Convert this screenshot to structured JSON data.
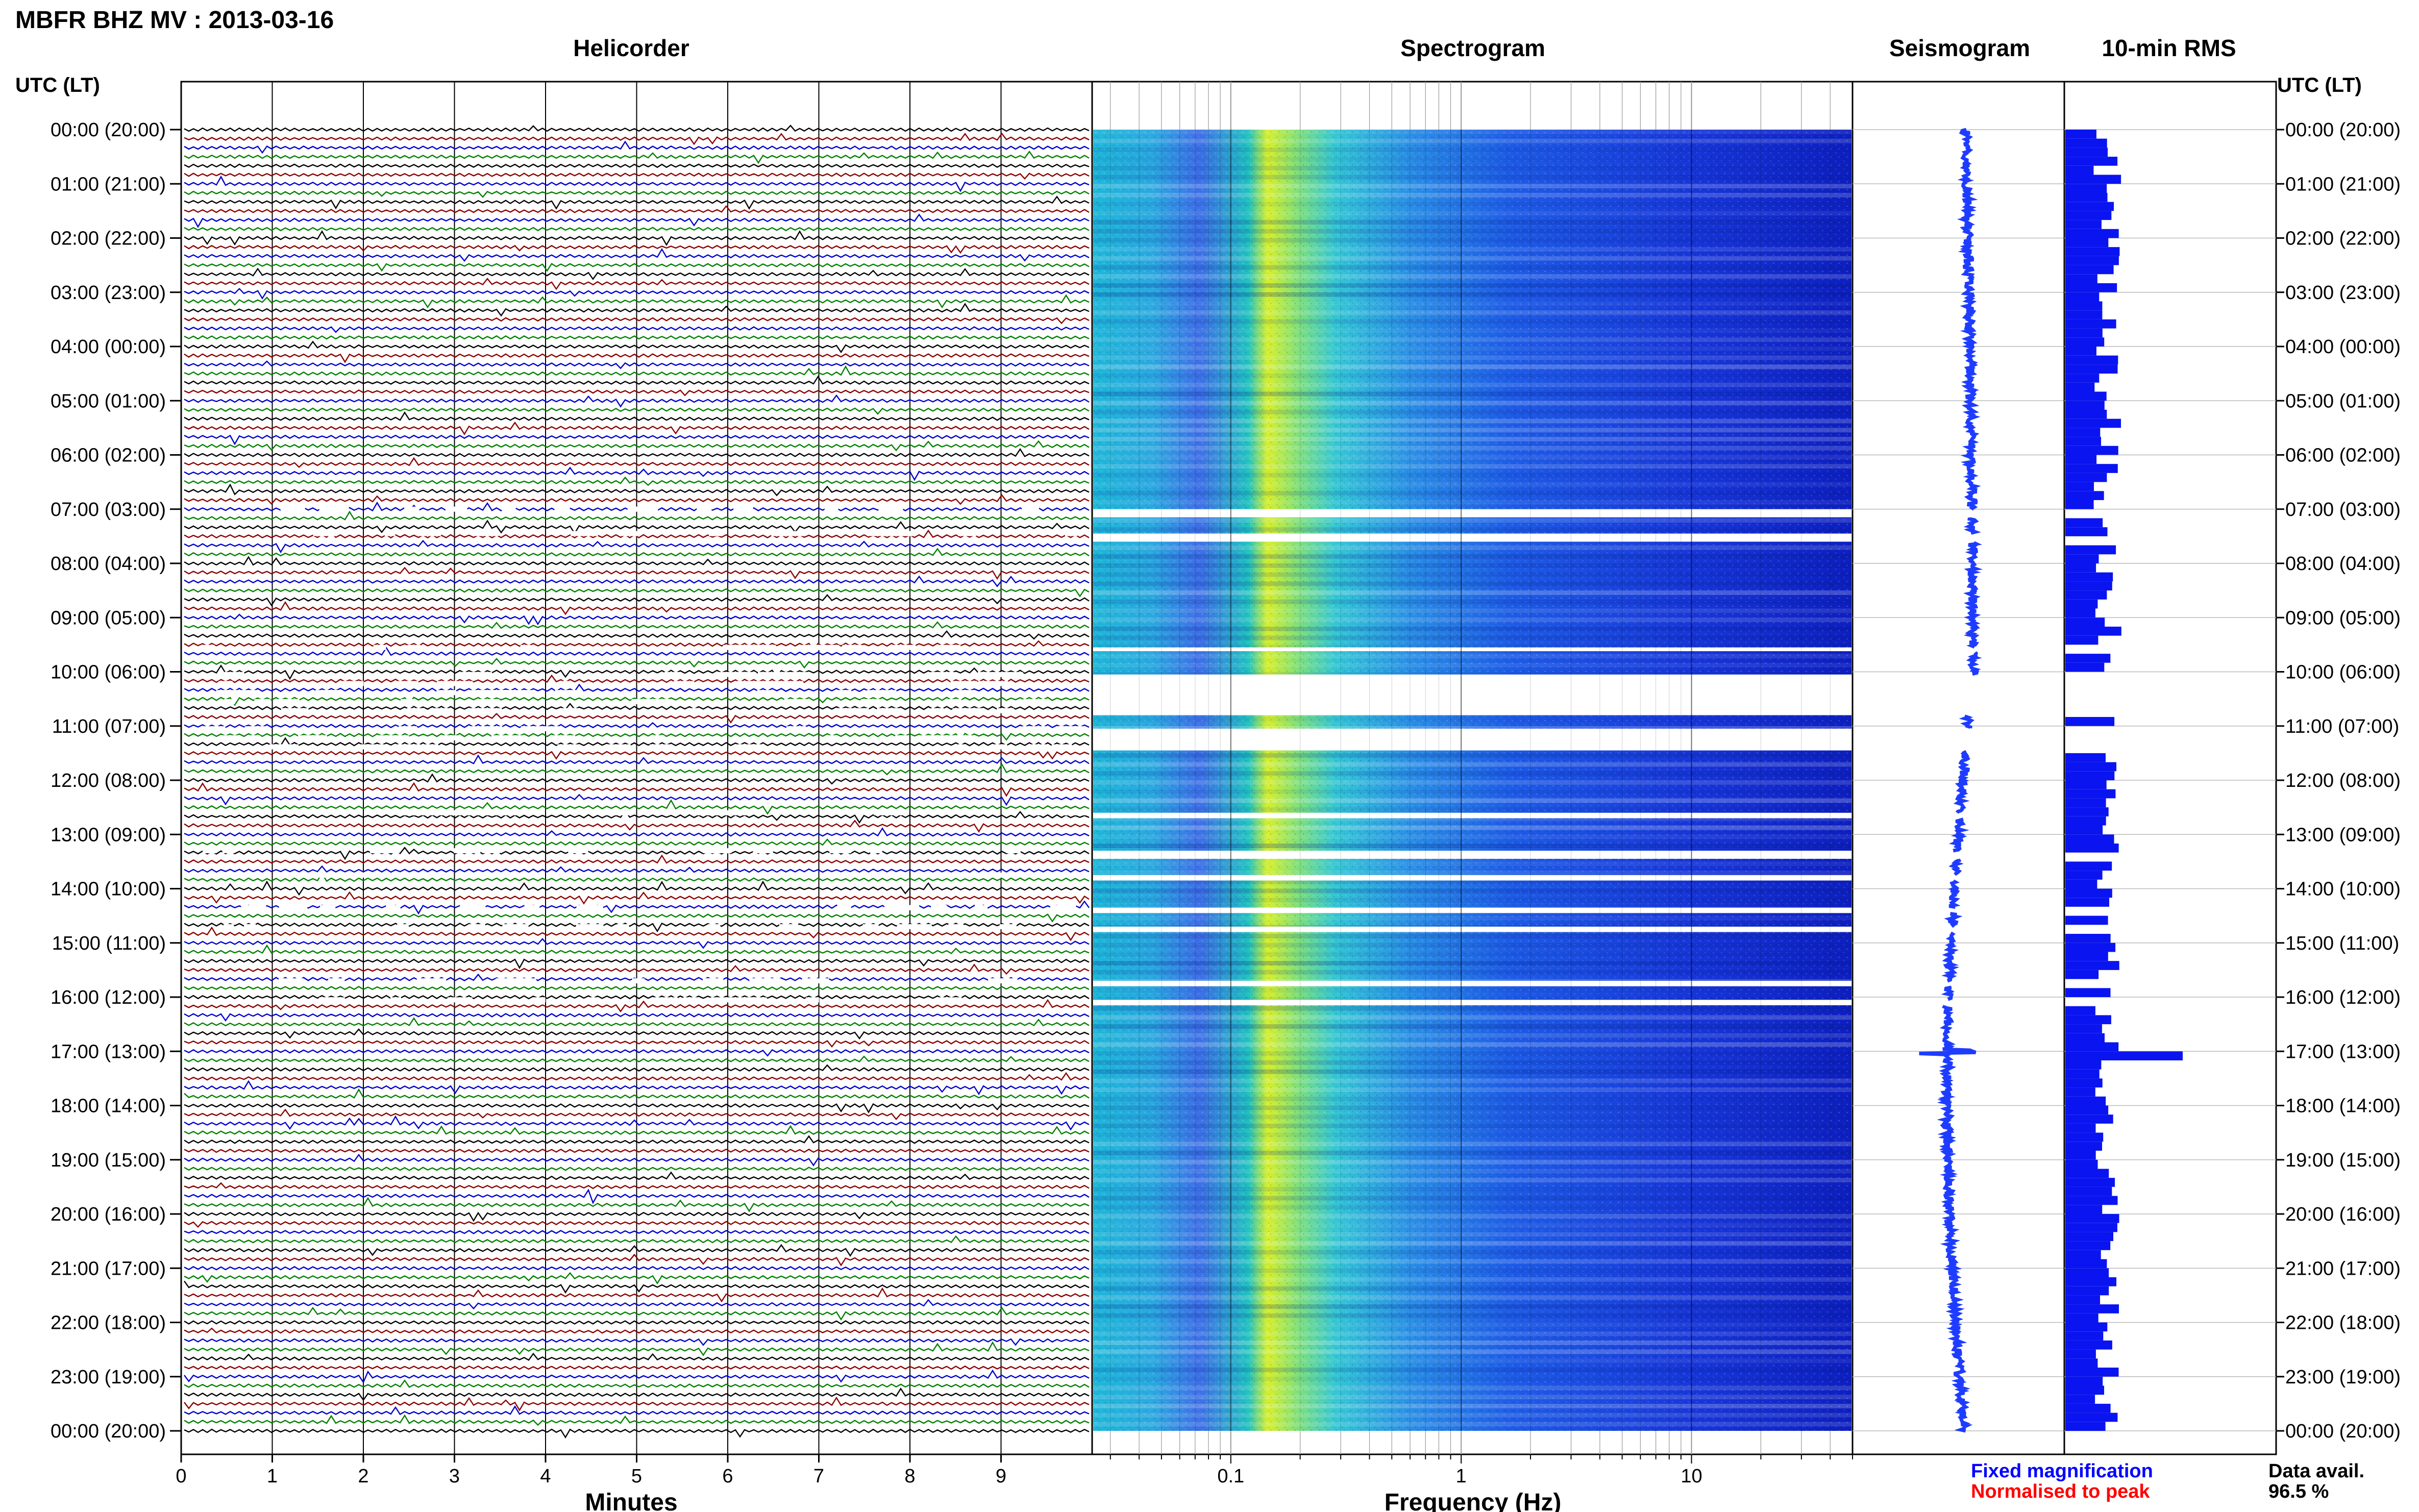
{
  "chart_data": {
    "type": "heatmap",
    "title": "MBFR BHZ MV : 2013-03-16",
    "time_axis_label": "UTC (LT)",
    "time_ticks": [
      "00:00 (20:00)",
      "01:00 (21:00)",
      "02:00 (22:00)",
      "03:00 (23:00)",
      "04:00 (00:00)",
      "05:00 (01:00)",
      "06:00 (02:00)",
      "07:00 (03:00)",
      "08:00 (04:00)",
      "09:00 (05:00)",
      "10:00 (06:00)",
      "11:00 (07:00)",
      "12:00 (08:00)",
      "13:00 (09:00)",
      "14:00 (10:00)",
      "15:00 (11:00)",
      "16:00 (12:00)",
      "17:00 (13:00)",
      "18:00 (14:00)",
      "19:00 (15:00)",
      "20:00 (16:00)",
      "21:00 (17:00)",
      "22:00 (18:00)",
      "23:00 (19:00)",
      "00:00 (20:00)"
    ],
    "panels": {
      "helicorder": {
        "title": "Helicorder",
        "xlabel": "Minutes",
        "x_ticks": [
          "0",
          "1",
          "2",
          "3",
          "4",
          "5",
          "6",
          "7",
          "8",
          "9"
        ],
        "xlim": [
          0,
          10
        ],
        "trace_colors": [
          "#000000",
          "#8b0000",
          "#0000cc",
          "#008000"
        ],
        "rows_per_hour": 6
      },
      "spectrogram": {
        "title": "Spectrogram",
        "xlabel": "Frequency (Hz)",
        "x_scale": "log",
        "x_ticks": [
          "0.1",
          "1",
          "10"
        ],
        "xlim": [
          0.025,
          50
        ]
      },
      "seismogram": {
        "title": "Seismogram"
      },
      "rms": {
        "title": "10-min RMS",
        "spike_time_utc": "17:00"
      }
    },
    "data_gaps_utc_hours": [
      [
        7.0,
        7.15
      ],
      [
        7.45,
        7.6
      ],
      [
        9.55,
        9.62
      ],
      [
        10.05,
        10.8
      ],
      [
        11.05,
        11.45
      ],
      [
        12.6,
        12.7
      ],
      [
        13.3,
        13.45
      ],
      [
        13.75,
        13.85
      ],
      [
        14.35,
        14.45
      ],
      [
        14.7,
        14.8
      ],
      [
        15.7,
        15.8
      ],
      [
        16.05,
        16.15
      ]
    ],
    "rms_spike_hour": 17.0,
    "legend": {
      "fixed": {
        "label": "Fixed magnification",
        "color": "#0000ff"
      },
      "normalised": {
        "label": "Normalised to peak",
        "color": "#ff0000"
      }
    },
    "data_availability": {
      "label": "Data avail.",
      "value": "96.5 %"
    }
  }
}
